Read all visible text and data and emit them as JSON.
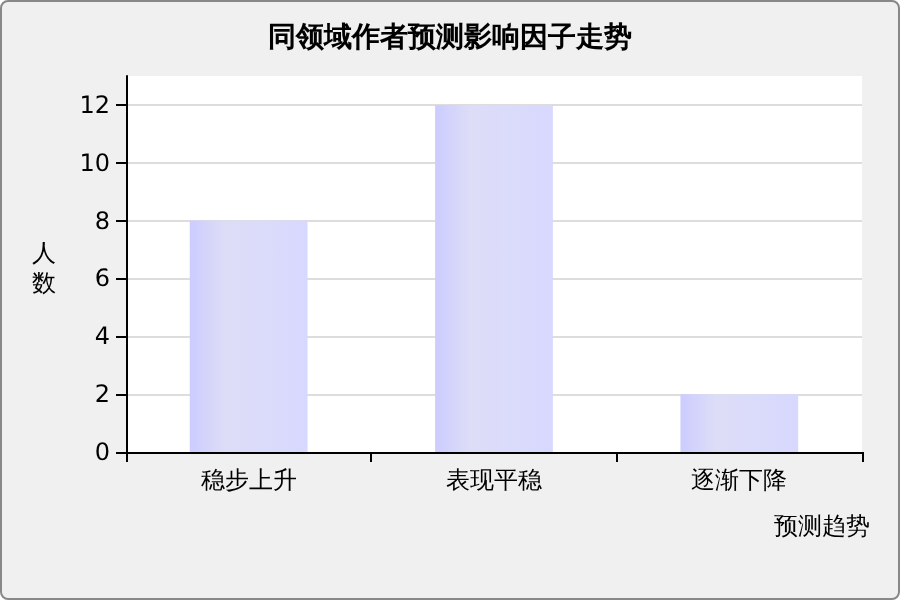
{
  "chart_data": {
    "type": "bar",
    "title": "同领域作者预测影响因子走势",
    "xlabel": "预测趋势",
    "ylabel": "人数",
    "categories": [
      "稳步上升",
      "表现平稳",
      "逐渐下降"
    ],
    "values": [
      8,
      12,
      2
    ],
    "color": "#7878e0",
    "ylim": [
      0,
      13
    ],
    "yticks": [
      0,
      2,
      4,
      6,
      8,
      10,
      12
    ],
    "grid": "y"
  }
}
